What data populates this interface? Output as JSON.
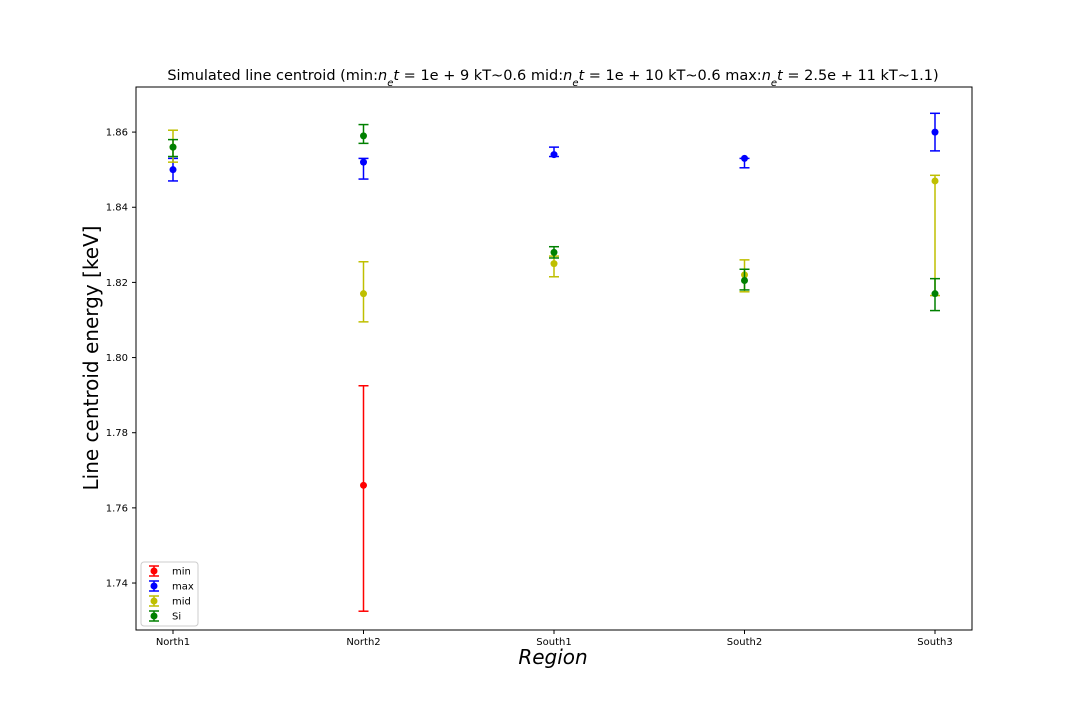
{
  "chart_data": {
    "type": "scatter",
    "title": {
      "min_prefix": "Simulated line centroid (min:",
      "min_value": "1e + 9",
      "min_kt": " kT~0.6 mid:",
      "mid_value": "1e + 10",
      "mid_kt": " kT~0.6 max:",
      "max_value": "2.5e + 11",
      "max_kt": " kT~1.1)",
      "ne_symbol": "n",
      "ne_subscript": "e",
      "t_symbol": "t",
      "equals": " = "
    },
    "xlabel": "Region",
    "ylabel": "Line centroid energy [keV]",
    "categories": [
      "North1",
      "North2",
      "South1",
      "South2",
      "South3"
    ],
    "ylim": [
      1.7275,
      1.872
    ],
    "yticks": [
      1.74,
      1.76,
      1.78,
      1.8,
      1.82,
      1.84,
      1.86
    ],
    "ytick_labels": [
      "1.74",
      "1.76",
      "1.78",
      "1.80",
      "1.82",
      "1.84",
      "1.86"
    ],
    "grid": false,
    "legend_position": "lower-left",
    "series": [
      {
        "name": "min",
        "color": "#ff0000",
        "points": [
          {
            "category": "North2",
            "y": 1.766,
            "err_low": 1.7325,
            "err_high": 1.7925
          }
        ]
      },
      {
        "name": "max",
        "color": "#0000ff",
        "points": [
          {
            "category": "North1",
            "y": 1.85,
            "err_low": 1.847,
            "err_high": 1.853
          },
          {
            "category": "North2",
            "y": 1.852,
            "err_low": 1.8475,
            "err_high": 1.853
          },
          {
            "category": "South1",
            "y": 1.854,
            "err_low": 1.8535,
            "err_high": 1.856
          },
          {
            "category": "South2",
            "y": 1.853,
            "err_low": 1.8505,
            "err_high": 1.853
          },
          {
            "category": "South3",
            "y": 1.86,
            "err_low": 1.855,
            "err_high": 1.865
          }
        ]
      },
      {
        "name": "mid",
        "color": "#bfbf00",
        "points": [
          {
            "category": "North1",
            "y": 1.856,
            "err_low": 1.852,
            "err_high": 1.8605
          },
          {
            "category": "North2",
            "y": 1.817,
            "err_low": 1.8095,
            "err_high": 1.8255
          },
          {
            "category": "South1",
            "y": 1.825,
            "err_low": 1.8215,
            "err_high": 1.827
          },
          {
            "category": "South2",
            "y": 1.822,
            "err_low": 1.8175,
            "err_high": 1.826
          },
          {
            "category": "South3",
            "y": 1.847,
            "err_low": 1.8165,
            "err_high": 1.8485
          }
        ]
      },
      {
        "name": "Si",
        "color": "#008000",
        "points": [
          {
            "category": "North1",
            "y": 1.856,
            "err_low": 1.8535,
            "err_high": 1.858
          },
          {
            "category": "North2",
            "y": 1.859,
            "err_low": 1.857,
            "err_high": 1.862
          },
          {
            "category": "South1",
            "y": 1.828,
            "err_low": 1.8265,
            "err_high": 1.8295
          },
          {
            "category": "South2",
            "y": 1.8205,
            "err_low": 1.818,
            "err_high": 1.8235
          },
          {
            "category": "South3",
            "y": 1.817,
            "err_low": 1.8125,
            "err_high": 1.821
          }
        ]
      }
    ]
  }
}
